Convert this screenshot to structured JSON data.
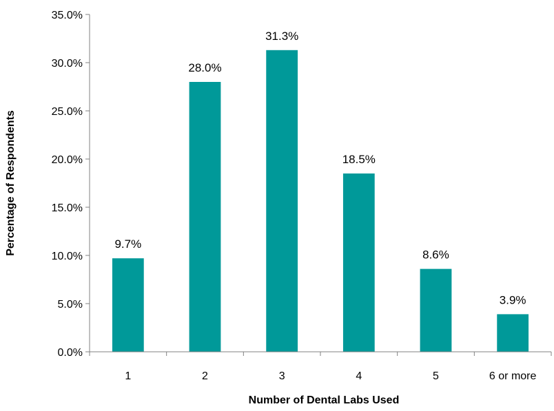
{
  "chart_data": {
    "type": "bar",
    "title": "",
    "xlabel": "Number of Dental Labs Used",
    "ylabel": "Percentage of Respondents",
    "categories": [
      "1",
      "2",
      "3",
      "4",
      "5",
      "6 or more"
    ],
    "values": [
      9.7,
      28.0,
      31.3,
      18.5,
      8.6,
      3.9
    ],
    "data_labels": [
      "9.7%",
      "28.0%",
      "31.3%",
      "18.5%",
      "8.6%",
      "3.9%"
    ],
    "ylim": [
      0,
      35
    ],
    "yticks": [
      0,
      5,
      10,
      15,
      20,
      25,
      30,
      35
    ],
    "ytick_labels": [
      "0.0%",
      "5.0%",
      "10.0%",
      "15.0%",
      "20.0%",
      "25.0%",
      "30.0%",
      "35.0%"
    ],
    "grid": false,
    "legend": "none",
    "bar_color": "#009999"
  }
}
